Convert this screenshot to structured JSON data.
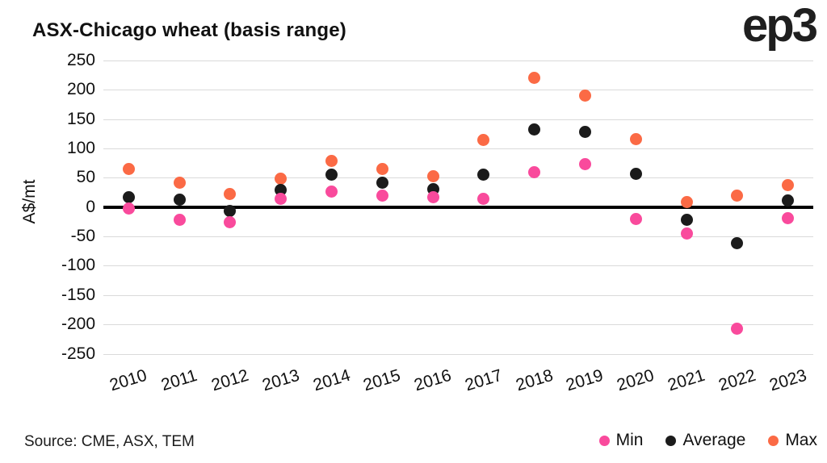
{
  "header": {
    "title": "ASX-Chicago wheat (basis range)",
    "logo_text": "ep3"
  },
  "footer": {
    "source": "Source: CME, ASX, TEM"
  },
  "colors": {
    "min": "#f94a9c",
    "average": "#1b1b1b",
    "max": "#fb6a45",
    "gridline": "#dadada",
    "zero_line": "#000000"
  },
  "chart_data": {
    "type": "scatter",
    "title": "ASX-Chicago wheat (basis range)",
    "xlabel": "",
    "ylabel": "A$/mt",
    "ylim": [
      -250,
      250
    ],
    "ytick_step": 50,
    "grid": true,
    "legend_position": "bottom-right",
    "categories": [
      "2010",
      "2011",
      "2012",
      "2013",
      "2014",
      "2015",
      "2016",
      "2017",
      "2018",
      "2019",
      "2020",
      "2021",
      "2022",
      "2023"
    ],
    "series": [
      {
        "name": "Min",
        "color": "#f94a9c",
        "values": [
          -2,
          -22,
          -26,
          14,
          26,
          20,
          17,
          14,
          60,
          73,
          -20,
          -45,
          -207,
          -19
        ]
      },
      {
        "name": "Average",
        "color": "#1b1b1b",
        "values": [
          17,
          13,
          -7,
          29,
          56,
          41,
          31,
          55,
          132,
          128,
          57,
          -22,
          -61,
          11
        ]
      },
      {
        "name": "Max",
        "color": "#fb6a45",
        "values": [
          65,
          41,
          22,
          49,
          79,
          65,
          53,
          114,
          220,
          190,
          116,
          9,
          19,
          38
        ]
      }
    ]
  }
}
